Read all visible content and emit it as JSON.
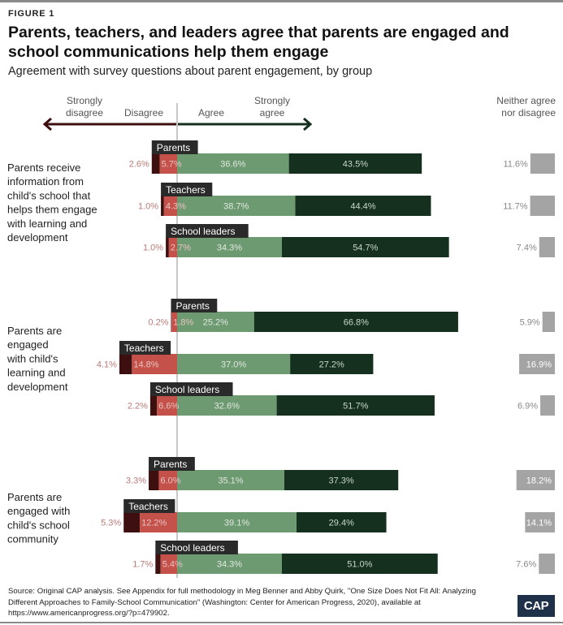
{
  "figure_label": "FIGURE 1",
  "title": "Parents, teachers, and leaders agree that parents are engaged and school communications help them engage",
  "subtitle": "Agreement with survey questions about parent engagement, by group",
  "source": "Source: Original CAP analysis. See Appendix for full methodology in Meg Benner and Abby Quirk, \"One Size Does Not Fit All: Analyzing Different Approaches to Family-School Communication\" (Washington: Center for American Progress, 2020), available at https://www.americanprogress.org/?p=479902.",
  "logo_text": "CAP",
  "colors": {
    "strongly_disagree": "#3d0f0f",
    "disagree": "#c4514a",
    "agree": "#6e9a72",
    "strongly_agree": "#16301f",
    "neither": "#a4a4a4",
    "group_label_bg": "#2a2a2a",
    "axis_line": "#c8c8c8",
    "disagree_text": "#b97a76",
    "neither_text": "#888888"
  },
  "chart_data": {
    "type": "diverging-stacked-bar",
    "legend": {
      "strongly_disagree": "Strongly disagree",
      "disagree": "Disagree",
      "agree": "Agree",
      "strongly_agree": "Strongly agree",
      "neither": "Neither agree nor disagree"
    },
    "questions": [
      {
        "label": "Parents receive information from child's school that helps them engage with learning and development",
        "groups": [
          {
            "name": "Parents",
            "strongly_disagree": 2.6,
            "disagree": 5.7,
            "agree": 36.6,
            "strongly_agree": 43.5,
            "neither": 11.6
          },
          {
            "name": "Teachers",
            "strongly_disagree": 1.0,
            "disagree": 4.3,
            "agree": 38.7,
            "strongly_agree": 44.4,
            "neither": 11.7
          },
          {
            "name": "School leaders",
            "strongly_disagree": 1.0,
            "disagree": 2.7,
            "agree": 34.3,
            "strongly_agree": 54.7,
            "neither": 7.4
          }
        ]
      },
      {
        "label": "Parents are engaged with child's learning and development",
        "groups": [
          {
            "name": "Parents",
            "strongly_disagree": 0.2,
            "disagree": 1.8,
            "agree": 25.2,
            "strongly_agree": 66.8,
            "neither": 5.9
          },
          {
            "name": "Teachers",
            "strongly_disagree": 4.1,
            "disagree": 14.8,
            "agree": 37.0,
            "strongly_agree": 27.2,
            "neither": 16.9
          },
          {
            "name": "School leaders",
            "strongly_disagree": 2.2,
            "disagree": 6.6,
            "agree": 32.6,
            "strongly_agree": 51.7,
            "neither": 6.9
          }
        ]
      },
      {
        "label": "Parents are engaged with child's school community",
        "groups": [
          {
            "name": "Parents",
            "strongly_disagree": 3.3,
            "disagree": 6.0,
            "agree": 35.1,
            "strongly_agree": 37.3,
            "neither": 18.2
          },
          {
            "name": "Teachers",
            "strongly_disagree": 5.3,
            "disagree": 12.2,
            "agree": 39.1,
            "strongly_agree": 29.4,
            "neither": 14.1
          },
          {
            "name": "School leaders",
            "strongly_disagree": 1.7,
            "disagree": 5.4,
            "agree": 34.3,
            "strongly_agree": 51.0,
            "neither": 7.6
          }
        ]
      }
    ]
  }
}
